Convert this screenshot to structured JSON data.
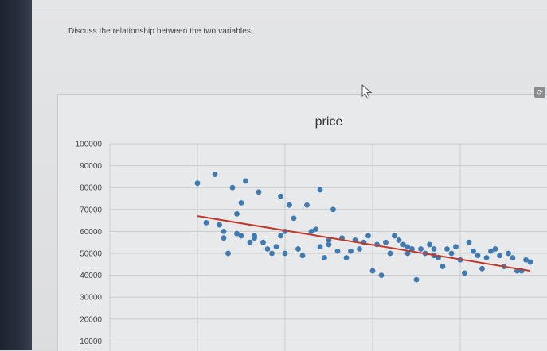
{
  "question": {
    "prompt": "Discuss the relationship between the two variables."
  },
  "panel": {
    "toggle_icon": "refresh-icon"
  },
  "chart_data": {
    "type": "scatter",
    "title": "price",
    "xlabel": "",
    "ylabel": "",
    "ylim": [
      0,
      100000
    ],
    "xlim": [
      0,
      100
    ],
    "yticks": [
      100000,
      90000,
      80000,
      70000,
      60000,
      50000,
      40000,
      30000,
      20000,
      10000
    ],
    "grid": true,
    "colors": {
      "points": "#3f7bb0",
      "trendline": "#c0392b"
    },
    "trendline": {
      "x": [
        20,
        96
      ],
      "y": [
        67000,
        42000
      ]
    },
    "x": [
      20,
      22,
      24,
      25,
      26,
      26,
      27,
      28,
      29,
      29,
      30,
      30,
      31,
      32,
      33,
      33,
      34,
      35,
      36,
      37,
      38,
      39,
      39,
      40,
      40,
      41,
      42,
      43,
      44,
      45,
      46,
      47,
      48,
      48,
      49,
      50,
      50,
      51,
      52,
      53,
      54,
      55,
      56,
      57,
      58,
      59,
      60,
      61,
      62,
      63,
      64,
      65,
      66,
      67,
      68,
      68,
      69,
      70,
      71,
      72,
      73,
      74,
      74,
      75,
      76,
      77,
      78,
      79,
      80,
      81,
      82,
      83,
      84,
      85,
      86,
      87,
      88,
      89,
      90,
      91,
      92,
      93,
      94,
      95,
      96
    ],
    "y": [
      82000,
      64000,
      86000,
      63000,
      57000,
      60000,
      50000,
      80000,
      68000,
      59000,
      58000,
      73000,
      83000,
      55000,
      57000,
      58000,
      78000,
      55000,
      52000,
      50000,
      53000,
      76000,
      58000,
      50000,
      60000,
      72000,
      66000,
      52000,
      49000,
      72000,
      60000,
      61000,
      53000,
      79000,
      48000,
      54000,
      56000,
      70000,
      51000,
      57000,
      48000,
      51000,
      56000,
      52000,
      55000,
      58000,
      42000,
      54000,
      40000,
      55000,
      50000,
      58000,
      56000,
      54000,
      53000,
      50000,
      52000,
      38000,
      52000,
      50000,
      54000,
      52000,
      49000,
      48000,
      44000,
      52000,
      50000,
      53000,
      47000,
      41000,
      55000,
      51000,
      49000,
      43000,
      48000,
      51000,
      52000,
      49000,
      44000,
      50000,
      48000,
      42000,
      42000,
      47000,
      46000
    ]
  }
}
